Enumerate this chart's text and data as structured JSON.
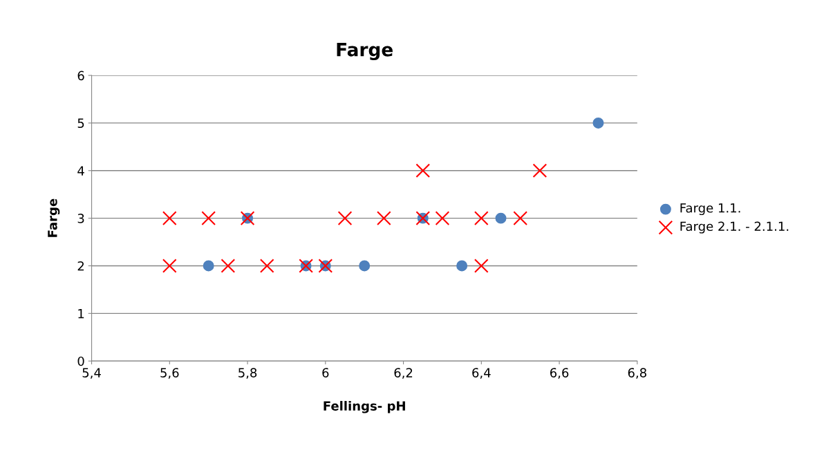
{
  "chart_data": {
    "type": "scatter",
    "title": "Farge",
    "xlabel": "Fellings- pH",
    "ylabel": "Farge",
    "xlim": [
      5.4,
      6.8
    ],
    "xticks": [
      {
        "value": 5.4,
        "label": "5,4"
      },
      {
        "value": 5.6,
        "label": "5,6"
      },
      {
        "value": 5.8,
        "label": "5,8"
      },
      {
        "value": 6,
        "label": "6"
      },
      {
        "value": 6.2,
        "label": "6,2"
      },
      {
        "value": 6.4,
        "label": "6,4"
      },
      {
        "value": 6.6,
        "label": "6,6"
      },
      {
        "value": 6.8,
        "label": "6,8"
      }
    ],
    "ylim": [
      0,
      6
    ],
    "yticks": [
      0,
      1,
      2,
      3,
      4,
      5,
      6
    ],
    "grid": "y",
    "legend": "right",
    "series": [
      {
        "name": "Farge 1.1.",
        "color": "#4f81bd",
        "marker": "circle",
        "x": [
          5.7,
          5.8,
          5.95,
          6.0,
          6.1,
          6.25,
          6.35,
          6.45,
          6.7
        ],
        "values": [
          2,
          3,
          2,
          2,
          2,
          3,
          2,
          3,
          5
        ]
      },
      {
        "name": "Farge 2.1. - 2.1.1.",
        "color": "#ff0000",
        "marker": "cross",
        "x": [
          5.6,
          5.7,
          5.8,
          6.05,
          6.15,
          6.25,
          6.3,
          6.4,
          6.5,
          5.6,
          5.75,
          5.85,
          5.95,
          6.0,
          6.4,
          6.25,
          6.55
        ],
        "values": [
          3,
          3,
          3,
          3,
          3,
          3,
          3,
          3,
          3,
          2,
          2,
          2,
          2,
          2,
          2,
          4,
          4
        ]
      }
    ]
  }
}
